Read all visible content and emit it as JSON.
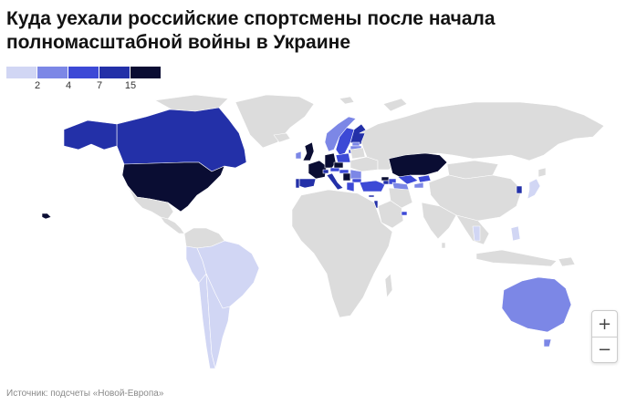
{
  "title": "Куда уехали российские спортсмены после начала полномасштабной войны в Украине",
  "legend": {
    "colors": [
      "#d1d6f4",
      "#7c87e6",
      "#3c49d6",
      "#2330a8",
      "#0a0d33"
    ],
    "labels": [
      "2",
      "4",
      "7",
      "15"
    ]
  },
  "no_data_color": "#dcdcdc",
  "zoom": {
    "zoom_in_label": "+",
    "zoom_out_label": "−"
  },
  "source": "Источник: подсчеты «Новой-Европа»",
  "regions": [
    {
      "name": "USA",
      "level": 5
    },
    {
      "name": "Canada",
      "level": 4
    },
    {
      "name": "Alaska",
      "level": 4
    },
    {
      "name": "Greenland",
      "level": 0
    },
    {
      "name": "Mexico",
      "level": 0
    },
    {
      "name": "Central America",
      "level": 0
    },
    {
      "name": "Brazil",
      "level": 1
    },
    {
      "name": "Argentina",
      "level": 1
    },
    {
      "name": "Chile",
      "level": 1
    },
    {
      "name": "Peru",
      "level": 1
    },
    {
      "name": "Colombia",
      "level": 0
    },
    {
      "name": "UK",
      "level": 5
    },
    {
      "name": "Ireland",
      "level": 2
    },
    {
      "name": "France",
      "level": 5
    },
    {
      "name": "Spain",
      "level": 4
    },
    {
      "name": "Portugal",
      "level": 4
    },
    {
      "name": "Germany",
      "level": 5
    },
    {
      "name": "Italy",
      "level": 4
    },
    {
      "name": "Switzerland",
      "level": 4
    },
    {
      "name": "Austria",
      "level": 3
    },
    {
      "name": "Poland",
      "level": 3
    },
    {
      "name": "Czech Republic",
      "level": 5
    },
    {
      "name": "Serbia",
      "level": 5
    },
    {
      "name": "Hungary",
      "level": 3
    },
    {
      "name": "Bulgaria",
      "level": 3
    },
    {
      "name": "Greece",
      "level": 3
    },
    {
      "name": "Romania",
      "level": 2
    },
    {
      "name": "Sweden",
      "level": 3
    },
    {
      "name": "Norway",
      "level": 2
    },
    {
      "name": "Finland",
      "level": 4
    },
    {
      "name": "Latvia",
      "level": 2
    },
    {
      "name": "Lithuania",
      "level": 3
    },
    {
      "name": "Estonia",
      "level": 2
    },
    {
      "name": "Turkey",
      "level": 3
    },
    {
      "name": "Georgia",
      "level": 5
    },
    {
      "name": "Armenia",
      "level": 4
    },
    {
      "name": "Azerbaijan",
      "level": 3
    },
    {
      "name": "Cyprus",
      "level": 4
    },
    {
      "name": "Israel",
      "level": 4
    },
    {
      "name": "Kazakhstan",
      "level": 5
    },
    {
      "name": "Uzbekistan",
      "level": 3
    },
    {
      "name": "Kyrgyzstan",
      "level": 3
    },
    {
      "name": "Tajikistan",
      "level": 2
    },
    {
      "name": "Turkmenistan",
      "level": 2
    },
    {
      "name": "UAE",
      "level": 3
    },
    {
      "name": "Thailand",
      "level": 1
    },
    {
      "name": "South Korea",
      "level": 4
    },
    {
      "name": "Japan",
      "level": 1
    },
    {
      "name": "Philippines",
      "level": 1
    },
    {
      "name": "Australia",
      "level": 2
    },
    {
      "name": "New Zealand",
      "level": 1
    },
    {
      "name": "Hawaii",
      "level": 5
    },
    {
      "name": "Russia",
      "level": 0
    },
    {
      "name": "Ukraine",
      "level": 0
    },
    {
      "name": "Belarus",
      "level": 0
    },
    {
      "name": "China",
      "level": 0
    },
    {
      "name": "Mongolia",
      "level": 0
    },
    {
      "name": "Iran",
      "level": 0
    },
    {
      "name": "Saudi Arabia",
      "level": 0
    },
    {
      "name": "India",
      "level": 0
    },
    {
      "name": "Southeast Asia",
      "level": 0
    },
    {
      "name": "Indonesia",
      "level": 0
    },
    {
      "name": "Africa",
      "level": 0
    },
    {
      "name": "Madagascar",
      "level": 0
    },
    {
      "name": "Iceland",
      "level": 0
    },
    {
      "name": "Svalbard",
      "level": 0
    },
    {
      "name": "Novaya Zemlya",
      "level": 0
    },
    {
      "name": "Arctic islands",
      "level": 0
    },
    {
      "name": "Japan north",
      "level": 0
    },
    {
      "name": "Papua New Guinea",
      "level": 0
    },
    {
      "name": "Sri Lanka",
      "level": 0
    }
  ]
}
